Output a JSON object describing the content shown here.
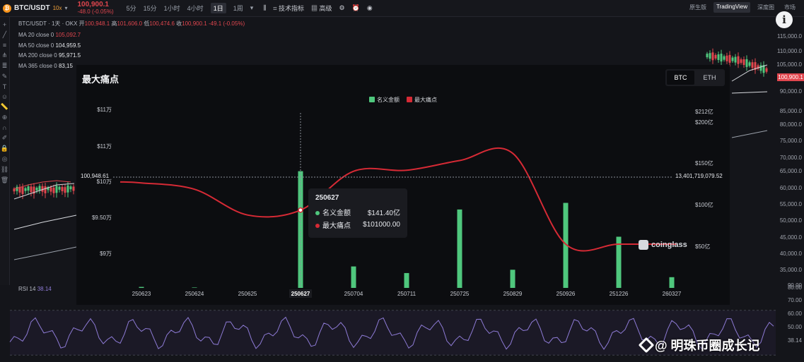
{
  "topbar": {
    "symbol": "BTC/USDT",
    "coin_glyph": "₿",
    "leverage": "10x",
    "price": "100,900.1",
    "change": "-48.0 (-0.05%)",
    "timeframes": [
      "5分",
      "15分",
      "1小时",
      "4小时",
      "1日",
      "1周"
    ],
    "active_timeframe": "1日",
    "tools": [
      "技术指标",
      "高级"
    ],
    "views": [
      "原生版",
      "TradingView",
      "深度图",
      "市场"
    ],
    "active_view": "TradingView"
  },
  "chart_header": {
    "title": "BTC/USDT · 1天 · OKX",
    "open_label": "开",
    "open": "100,948.1",
    "high_label": "高",
    "high": "101,606.0",
    "low_label": "低",
    "low": "100,474.6",
    "close_label": "收",
    "close": "100,900.1",
    "delta": "-49.1 (-0.05%)"
  },
  "ma_lines": [
    {
      "label": "MA 20 close 0",
      "value": "105,092.7"
    },
    {
      "label": "MA 50 close 0",
      "value": "104,959.5"
    },
    {
      "label": "MA 200 close 0",
      "value": "95,971.5"
    },
    {
      "label": "MA 365 close 0",
      "value": "83,15"
    }
  ],
  "right_axis": [
    "115,000.0",
    "110,000.0",
    "105,000.0",
    "100,900.1",
    "95,000.0",
    "90,000.0",
    "85,000.0",
    "80,000.0",
    "75,000.0",
    "70,000.0",
    "65,000.0",
    "60,000.0",
    "55,000.0",
    "50,000.0",
    "45,000.0",
    "40,000.0",
    "35,000.0",
    "90.00",
    "80.00",
    "70.00",
    "60.00",
    "50.00",
    "38.14"
  ],
  "rsi": {
    "label": "RSI 14",
    "value": "38.14"
  },
  "overlay": {
    "title": "最大痛点",
    "tabs": [
      "BTC",
      "ETH"
    ],
    "active_tab": "BTC",
    "brand": "coinglass",
    "crosshair_left": "100,948.61",
    "crosshair_right": "13,401,719,079.52"
  },
  "tooltip": {
    "date": "250627",
    "rows": [
      {
        "name": "名义金额",
        "value": "$141.40亿",
        "color": "#4fc77d"
      },
      {
        "name": "最大痛点",
        "value": "$101000.00",
        "color": "#d62a35"
      }
    ]
  },
  "chart_data": {
    "type": "bar",
    "title": "",
    "categories": [
      "250623",
      "250624",
      "250625",
      "250627",
      "250704",
      "250711",
      "250725",
      "250829",
      "250926",
      "251226",
      "260327"
    ],
    "series": [
      {
        "name": "名义金额",
        "type": "bar",
        "color": "#4fc77d",
        "axis": "right",
        "values": [
          1.2,
          0.5,
          0,
          141.4,
          26,
          18,
          95,
          22,
          103,
          62,
          13
        ]
      },
      {
        "name": "最大痛点",
        "type": "line",
        "color": "#d62a35",
        "axis": "left",
        "values": [
          106600,
          105300,
          100000,
          101000,
          109000,
          109200,
          111200,
          112700,
          94000,
          94000,
          94000
        ]
      }
    ],
    "left_ticks": [
      "$11万",
      "$11万",
      "$10万",
      "$9.50万",
      "$9万"
    ],
    "right_ticks": [
      "$212亿",
      "$200亿",
      "$150亿",
      "$100亿",
      "$50亿"
    ],
    "ylim_left": [
      85000,
      121000
    ],
    "ylim_right": [
      0,
      212
    ],
    "legend_position": "top-center",
    "grid": false
  },
  "watermark": "@ 明珠币圈成长记"
}
